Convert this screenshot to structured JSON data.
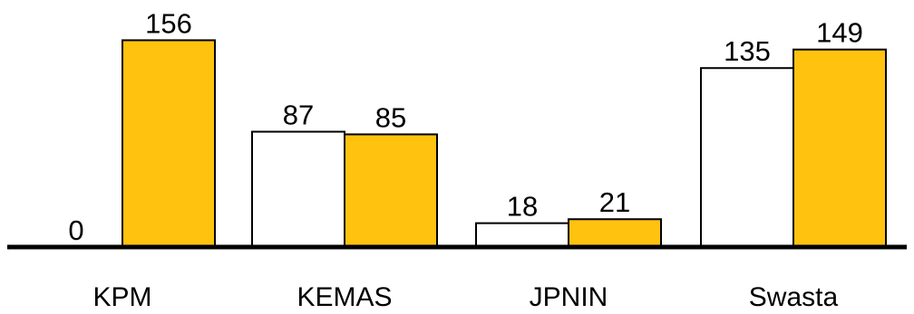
{
  "chart_data": {
    "type": "bar",
    "title": "",
    "xlabel": "",
    "ylabel": "",
    "categories": [
      "KPM",
      "KEMAS",
      "JPNIN",
      "Swasta"
    ],
    "series": [
      {
        "values": [
          0,
          87,
          18,
          135
        ]
      },
      {
        "values": [
          156,
          85,
          21,
          149
        ]
      }
    ],
    "ylim": [
      0,
      160
    ],
    "grid": false,
    "legend": "none",
    "colors": {
      "series_fill": [
        "#ffffff",
        "#ffc20e"
      ],
      "bar_stroke": "#000000",
      "baseline": "#000000",
      "text": "#000000"
    }
  }
}
